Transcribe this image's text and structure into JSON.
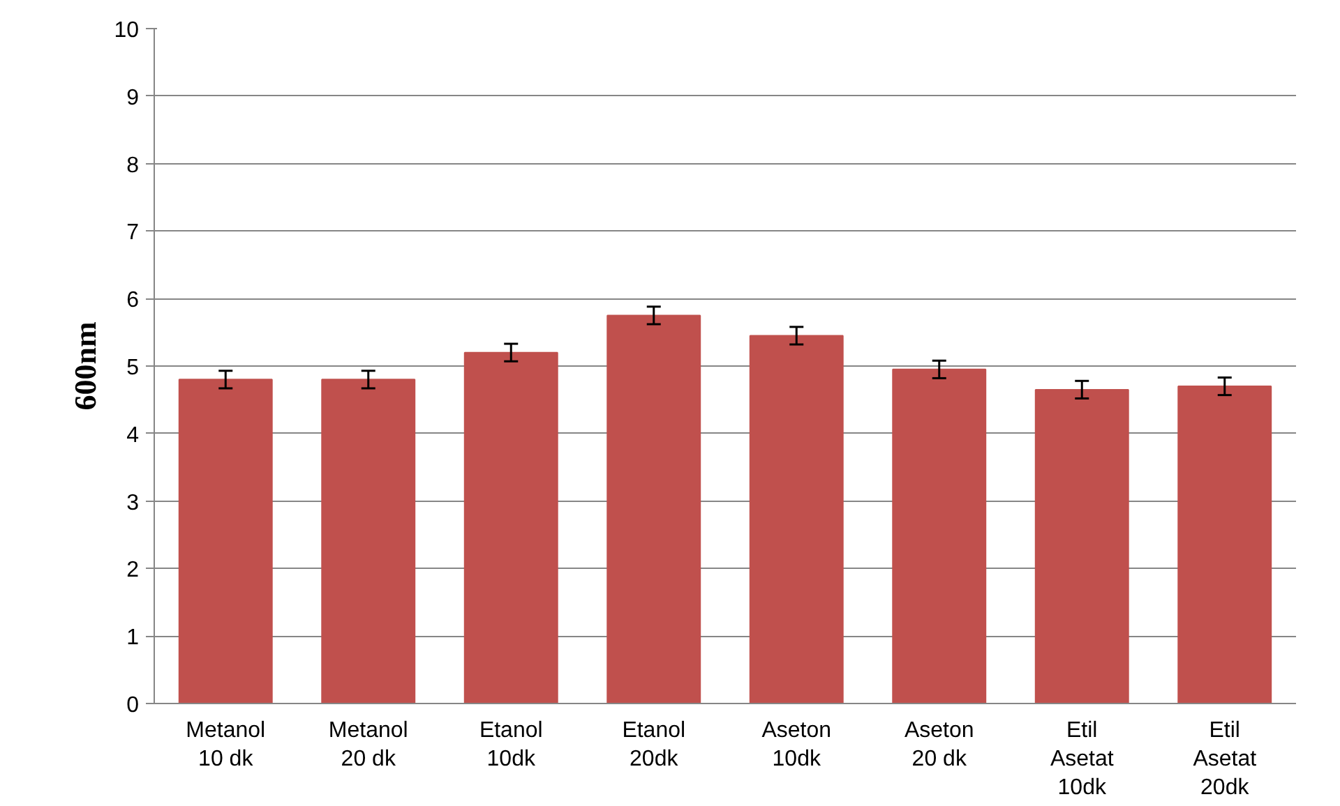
{
  "chart_data": {
    "type": "bar",
    "ylabel": "600nm",
    "categories": [
      "Metanol 10 dk",
      "Metanol 20 dk",
      "Etanol 10dk",
      "Etanol 20dk",
      "Aseton 10dk",
      "Aseton 20 dk",
      "Etil Asetat 10dk",
      "Etil Asetat 20dk"
    ],
    "values": [
      4.8,
      4.8,
      5.2,
      5.75,
      5.45,
      4.95,
      4.65,
      4.7
    ],
    "errors": [
      0.13,
      0.13,
      0.13,
      0.13,
      0.13,
      0.13,
      0.13,
      0.13
    ],
    "color": "#c0504d",
    "ylim": [
      0,
      10
    ],
    "yticks": [
      0,
      1,
      2,
      3,
      4,
      5,
      6,
      7,
      8,
      9,
      10
    ],
    "grid": "y"
  }
}
